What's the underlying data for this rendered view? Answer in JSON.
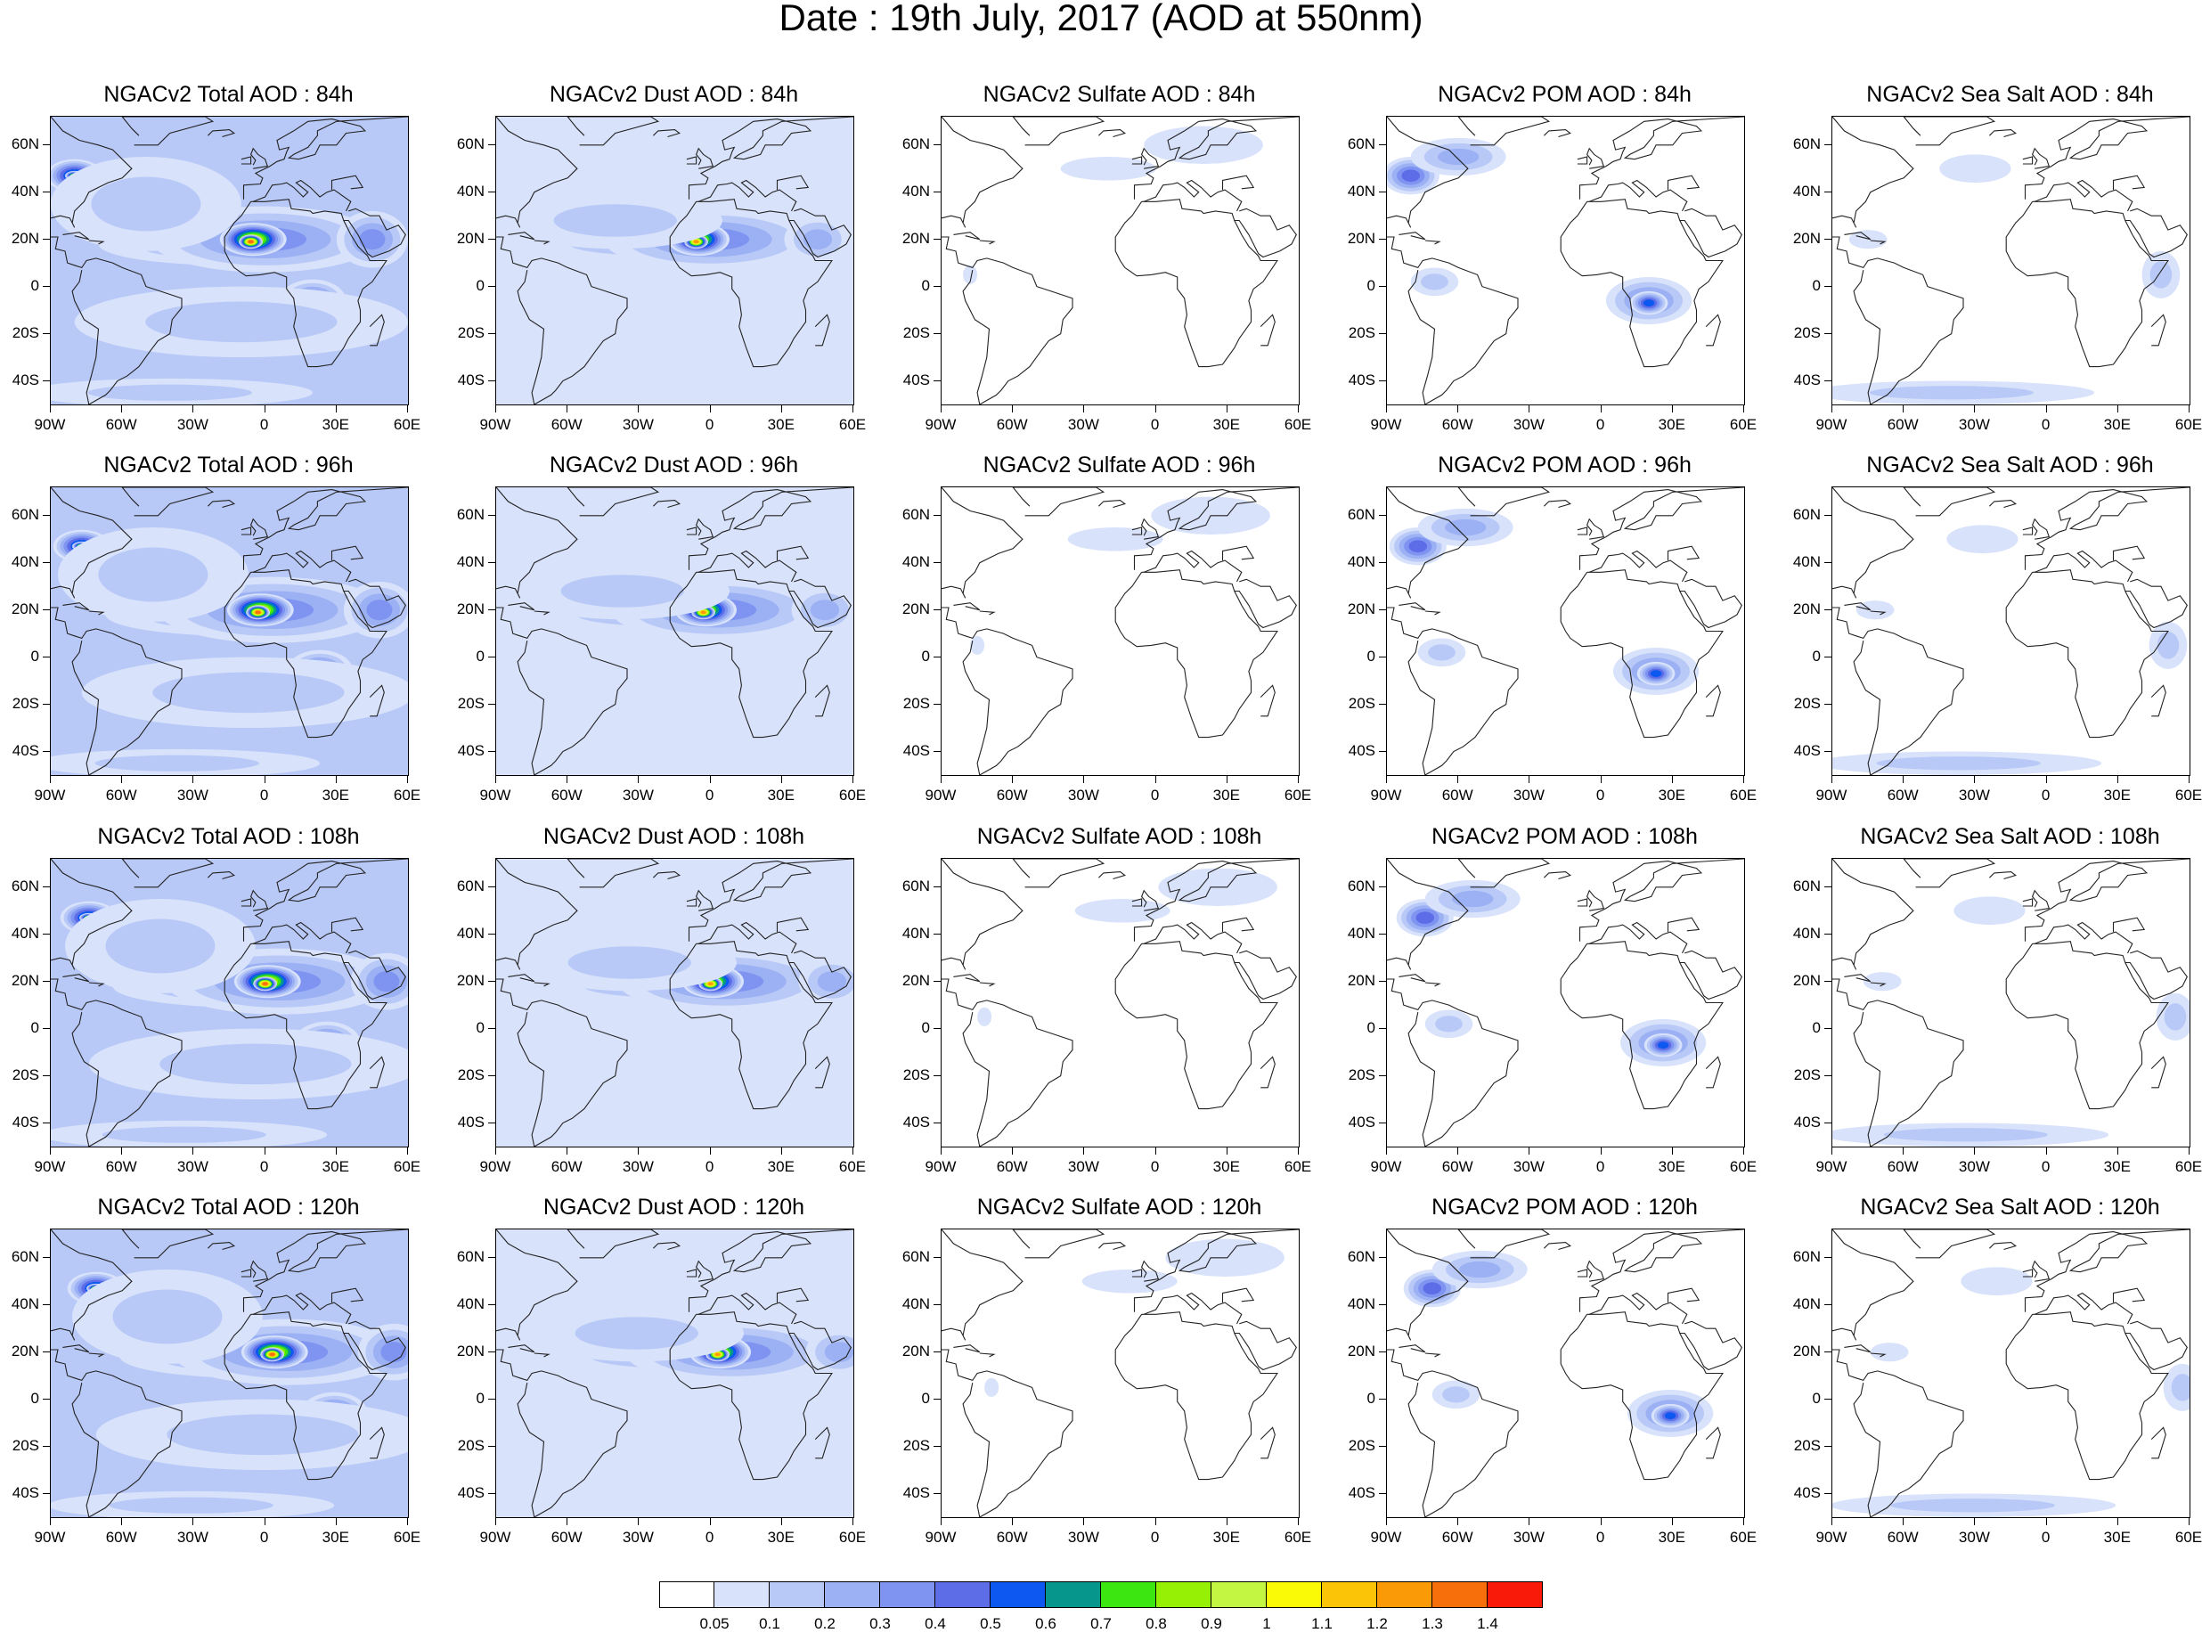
{
  "title": "Date : 19th July, 2017 (AOD at 550nm)",
  "species": [
    "Total",
    "Dust",
    "Sulfate",
    "POM",
    "Sea Salt"
  ],
  "rows": [
    {
      "hour": "84h",
      "titles": [
        "NGACv2 Total AOD : 84h",
        "NGACv2 Dust AOD : 84h",
        "NGACv2 Sulfate AOD : 84h",
        "NGACv2 POM AOD : 84h",
        "NGACv2 Sea Salt AOD : 84h"
      ]
    },
    {
      "hour": "96h",
      "titles": [
        "NGACv2 Total AOD : 96h",
        "NGACv2 Dust AOD : 96h",
        "NGACv2 Sulfate AOD : 96h",
        "NGACv2 POM AOD : 96h",
        "NGACv2 Sea Salt AOD : 96h"
      ]
    },
    {
      "hour": "108h",
      "titles": [
        "NGACv2 Total AOD : 108h",
        "NGACv2 Dust AOD : 108h",
        "NGACv2 Sulfate AOD : 108h",
        "NGACv2 POM AOD : 108h",
        "NGACv2 Sea Salt AOD : 108h"
      ]
    },
    {
      "hour": "120h",
      "titles": [
        "NGACv2 Total AOD : 120h",
        "NGACv2 Dust AOD : 120h",
        "NGACv2 Sulfate AOD : 120h",
        "NGACv2 POM AOD : 120h",
        "NGACv2 Sea Salt  AOD : 120h"
      ]
    }
  ],
  "lat_labels": [
    "60N",
    "40N",
    "20N",
    "0",
    "20S",
    "40S"
  ],
  "lon_labels": [
    "90W",
    "60W",
    "30W",
    "0",
    "30E",
    "60E"
  ],
  "colorbar": {
    "labels": [
      "0.05",
      "0.1",
      "0.2",
      "0.3",
      "0.4",
      "0.5",
      "0.6",
      "0.7",
      "0.8",
      "0.9",
      "1",
      "1.1",
      "1.2",
      "1.3",
      "1.4"
    ],
    "colors": [
      "#ffffff",
      "#d8e2fb",
      "#b9c9f7",
      "#9bb1f4",
      "#7f94f0",
      "#5d6de8",
      "#0d58f0",
      "#06968c",
      "#3ce610",
      "#95f006",
      "#c3f543",
      "#fbfa06",
      "#fbc406",
      "#f99a06",
      "#f76f0a",
      "#fa1a0a"
    ]
  }
}
